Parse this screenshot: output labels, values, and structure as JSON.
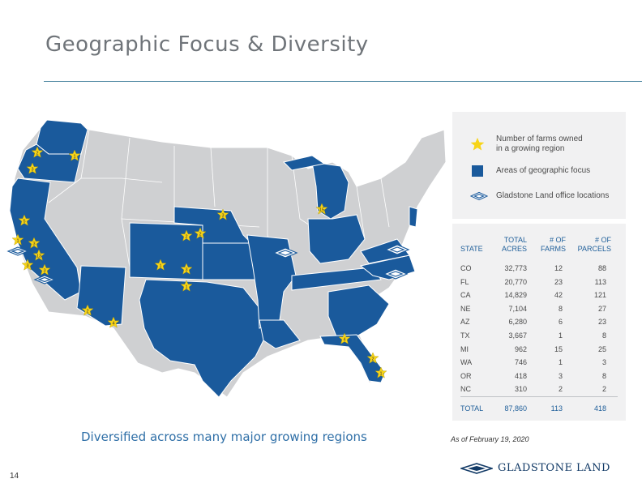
{
  "title": "Geographic Focus & Diversity",
  "legend": {
    "farms_label": "Number of farms owned\nin a growing region",
    "focus_label": "Areas of geographic focus",
    "office_label": "Gladstone Land office locations"
  },
  "table": {
    "headers": {
      "state": "STATE",
      "acres": "TOTAL\nACRES",
      "farms": "# OF\nFARMS",
      "parcels": "# OF\nPARCELS"
    },
    "rows": [
      {
        "state": "CO",
        "acres": "32,773",
        "farms": "12",
        "parcels": "88"
      },
      {
        "state": "FL",
        "acres": "20,770",
        "farms": "23",
        "parcels": "113"
      },
      {
        "state": "CA",
        "acres": "14,829",
        "farms": "42",
        "parcels": "121"
      },
      {
        "state": "NE",
        "acres": "7,104",
        "farms": "8",
        "parcels": "27"
      },
      {
        "state": "AZ",
        "acres": "6,280",
        "farms": "6",
        "parcels": "23"
      },
      {
        "state": "TX",
        "acres": "3,667",
        "farms": "1",
        "parcels": "8"
      },
      {
        "state": "MI",
        "acres": "962",
        "farms": "15",
        "parcels": "25"
      },
      {
        "state": "WA",
        "acres": "746",
        "farms": "1",
        "parcels": "3"
      },
      {
        "state": "OR",
        "acres": "418",
        "farms": "3",
        "parcels": "8"
      },
      {
        "state": "NC",
        "acres": "310",
        "farms": "2",
        "parcels": "2"
      }
    ],
    "total": {
      "state": "TOTAL",
      "acres": "87,860",
      "farms": "113",
      "parcels": "418"
    }
  },
  "subtitle": "Diversified across many major growing regions",
  "as_of": "As of February 19, 2020",
  "page_number": "14",
  "logo_text": "GLADSTONE LAND",
  "colors": {
    "focus": "#1a5a9c",
    "other": "#cfd0d2",
    "star": "#f7d417",
    "accent": "#1f5f9a"
  },
  "map_stars": [
    {
      "n": "2"
    },
    {
      "n": "1"
    },
    {
      "n": "3"
    },
    {
      "n": "5"
    },
    {
      "n": "1"
    },
    {
      "n": "3"
    },
    {
      "n": "13"
    },
    {
      "n": "3"
    },
    {
      "n": "3"
    },
    {
      "n": "2"
    },
    {
      "n": "4"
    },
    {
      "n": "2"
    },
    {
      "n": "2"
    },
    {
      "n": "3"
    },
    {
      "n": "1"
    },
    {
      "n": "3"
    },
    {
      "n": "15"
    },
    {
      "n": "1"
    },
    {
      "n": "4"
    },
    {
      "n": "2"
    },
    {
      "n": "1"
    }
  ]
}
